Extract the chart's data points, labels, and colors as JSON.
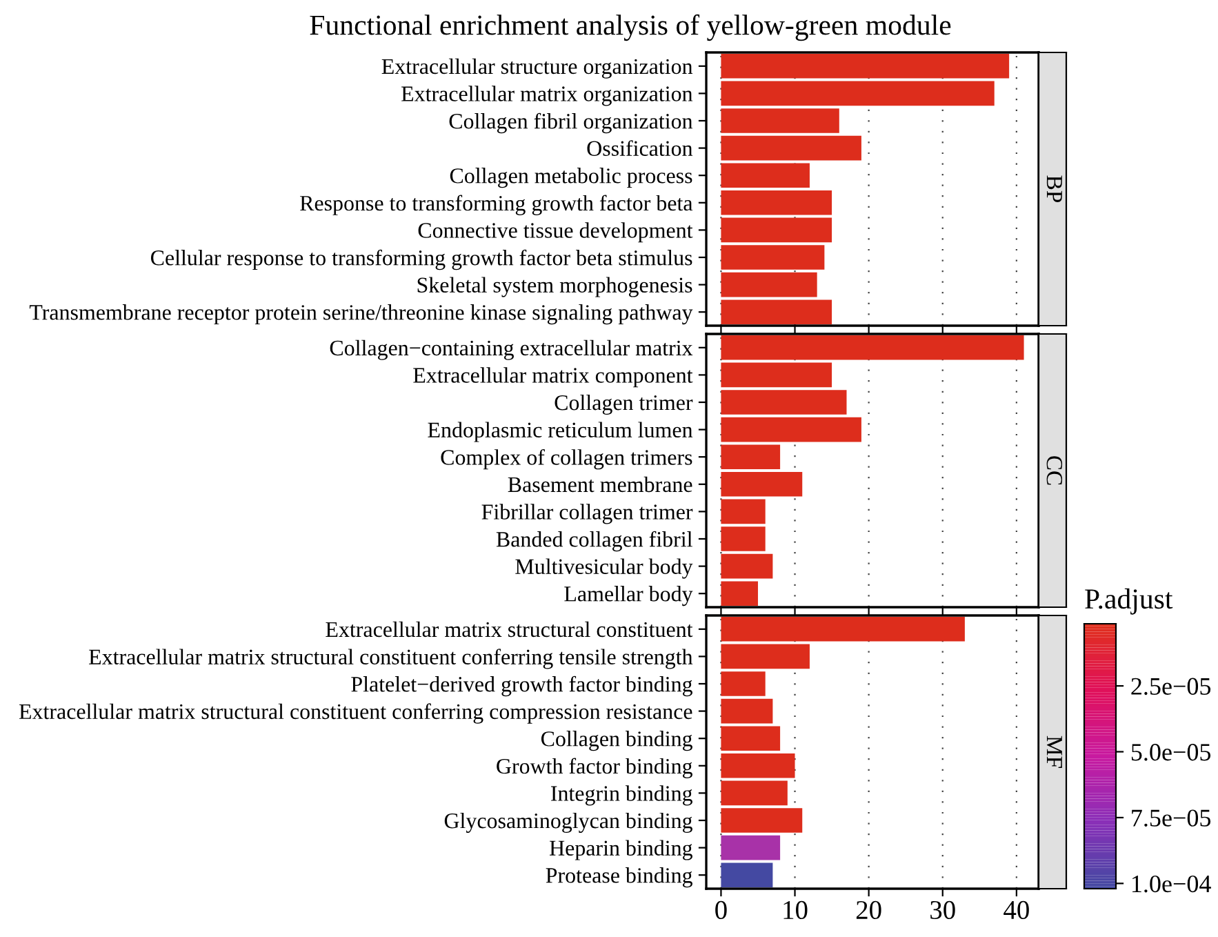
{
  "chart_data": [
    {
      "type": "bar",
      "orientation": "horizontal",
      "title": "Functional enrichment analysis of yellow-green module",
      "annotations": [
        "BP"
      ],
      "categories": [
        "Extracellular structure organization",
        "Extracellular matrix organization",
        "Collagen fibril organization",
        "Ossification",
        "Collagen metabolic process",
        "Response to transforming growth factor beta",
        "Connective tissue development",
        "Cellular response to transforming growth factor beta stimulus",
        "Skeletal system morphogenesis",
        "Transmembrane receptor protein serine/threonine kinase signaling pathway"
      ],
      "values": [
        39,
        37,
        16,
        19,
        12,
        15,
        15,
        14,
        13,
        15
      ],
      "colors": [
        "#dd2d1c",
        "#dd2d1c",
        "#dd2d1c",
        "#dd2d1c",
        "#dd2d1c",
        "#dd2d1c",
        "#dd2d1c",
        "#dd2d1c",
        "#dd2d1c",
        "#dd2d1c"
      ],
      "xlim": [
        -2,
        43
      ],
      "xticks": [
        0,
        10,
        20,
        30,
        40
      ],
      "grid": "x",
      "tick_labels": "y"
    },
    {
      "type": "bar",
      "orientation": "horizontal",
      "annotations": [
        "CC"
      ],
      "categories": [
        "Collagen−containing extracellular matrix",
        "Extracellular matrix component",
        "Collagen trimer",
        "Endoplasmic reticulum lumen",
        "Complex of collagen trimers",
        "Basement membrane",
        "Fibrillar collagen trimer",
        "Banded collagen fibril",
        "Multivesicular body",
        "Lamellar body"
      ],
      "values": [
        41,
        15,
        17,
        19,
        8,
        11,
        6,
        6,
        7,
        5
      ],
      "colors": [
        "#dd2d1c",
        "#dd2d1c",
        "#dd2d1c",
        "#dd2d1c",
        "#dd2d1c",
        "#dd2d1c",
        "#dd2d1c",
        "#dd2d1c",
        "#dd2d1c",
        "#dd2d1c"
      ],
      "xlim": [
        -2,
        43
      ],
      "xticks": [
        0,
        10,
        20,
        30,
        40
      ],
      "grid": "x",
      "tick_labels": "y"
    },
    {
      "type": "bar",
      "orientation": "horizontal",
      "annotations": [
        "MF"
      ],
      "categories": [
        "Extracellular matrix structural constituent",
        "Extracellular matrix structural constituent conferring tensile strength",
        "Platelet−derived growth factor binding",
        "Extracellular matrix structural constituent conferring compression resistance",
        "Collagen binding",
        "Growth factor binding",
        "Integrin binding",
        "Glycosaminoglycan binding",
        "Heparin binding",
        "Protease binding"
      ],
      "values": [
        33,
        12,
        6,
        7,
        8,
        10,
        9,
        11,
        8,
        7
      ],
      "colors": [
        "#dd2d1c",
        "#dd2d1c",
        "#dd2d1c",
        "#dd2d1c",
        "#dd2d1c",
        "#dd2d1c",
        "#dd2d1c",
        "#dd2d1c",
        "#a832a8",
        "#4449a2"
      ],
      "xlim": [
        -2,
        43
      ],
      "xticks": [
        0,
        10,
        20,
        30,
        40
      ],
      "grid": "x",
      "clabel": "P.adjust",
      "clim": [
        0.000102,
        1.4e-06
      ],
      "cticks": [
        {
          "value": 2.5e-05,
          "label": "2.5e−05"
        },
        {
          "value": 5e-05,
          "label": "5.0e−05"
        },
        {
          "value": 7.5e-05,
          "label": "7.5e−05"
        },
        {
          "value": 0.0001,
          "label": "1.0e−04"
        }
      ]
    }
  ]
}
